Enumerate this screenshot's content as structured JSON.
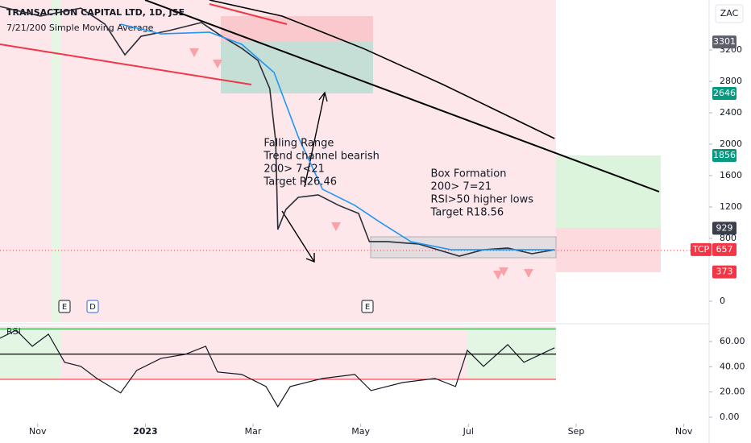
{
  "chart_data": {
    "type": "line",
    "title": "TRANSACTION CAPITAL LTD, 1D, JSE",
    "subtitle": "7/21/200 Simple Moving Average",
    "currency": "ZAC",
    "xlim": [
      0.3,
      13.47
    ],
    "xticks": [
      {
        "value": 1,
        "label": "Nov"
      },
      {
        "value": 3,
        "label": "2023"
      },
      {
        "value": 5,
        "label": "Mar"
      },
      {
        "value": 7,
        "label": "May"
      },
      {
        "value": 9,
        "label": "Jul"
      },
      {
        "value": 11,
        "label": "Sep"
      },
      {
        "value": 13,
        "label": "Nov"
      }
    ],
    "ylim": [
      -267,
      3836
    ],
    "yticks": [
      0,
      800,
      1200,
      1600,
      2000,
      2400,
      2800,
      3200
    ],
    "series": [
      {
        "color": "#2a2e39",
        "x": [
          0.3,
          1.05,
          1.8,
          2.25,
          2.62,
          2.92,
          3.44,
          4.04,
          4.42,
          4.79,
          5.09,
          5.31,
          5.42,
          5.46,
          5.61,
          5.84,
          6.21,
          6.59,
          6.96,
          7.16,
          7.49,
          8.08,
          8.83,
          9.28,
          9.73,
          10.18,
          10.6
        ],
        "values": [
          3754,
          3631,
          3733,
          3528,
          3138,
          3374,
          3446,
          3549,
          3374,
          3221,
          3067,
          2708,
          2041,
          913,
          1169,
          1323,
          1354,
          1221,
          1118,
          759,
          759,
          728,
          574,
          656,
          677,
          605,
          656
        ]
      },
      {
        "color": "#2196f3",
        "x": [
          2.54,
          3.29,
          4.19,
          4.79,
          5.39,
          5.84,
          6.29,
          6.89,
          7.34,
          7.93,
          8.68,
          10.6
        ],
        "values": [
          3528,
          3405,
          3426,
          3272,
          2913,
          2092,
          1426,
          1221,
          1015,
          759,
          656,
          656
        ]
      },
      {
        "color": "#000000",
        "x": [
          4.19,
          5.54,
          7.04,
          8.53,
          10.6
        ],
        "values": [
          3836,
          3631,
          3221,
          2759,
          2072
        ]
      }
    ],
    "price_labels": [
      {
        "value": 3301,
        "color": "#5d606b"
      },
      {
        "value": 2646,
        "color": "#089981"
      },
      {
        "value": 1856,
        "color": "#089981"
      },
      {
        "value": 929,
        "color": "#3a3e4a"
      },
      {
        "value": 657,
        "color": "#f23645",
        "symbol": "TCP"
      },
      {
        "value": 373,
        "color": "#f23645"
      }
    ],
    "annotations": [
      {
        "lines": [
          "Falling Range",
          "Trend channel bearish",
          "200> 7<21",
          "Target R26.46"
        ],
        "x": 5.2,
        "y": 2010
      },
      {
        "lines": [
          "Box Formation",
          "200> 7=21",
          "RSI>50 higher lows",
          "Target R18.56"
        ],
        "x": 8.3,
        "y": 1620
      }
    ],
    "events": [
      "E",
      "D",
      "E"
    ],
    "rsi": {
      "title": "RSI",
      "color": "#131722",
      "ylim": [
        -4.5,
        72.1
      ],
      "yticks": [
        {
          "value": 60,
          "label": "60.00"
        },
        {
          "value": 40,
          "label": "40.00"
        },
        {
          "value": 20,
          "label": "20.00"
        },
        {
          "value": 0,
          "label": "0.00"
        }
      ],
      "levels": [
        {
          "value": 70,
          "color": "#22ab3d"
        },
        {
          "value": 50,
          "color": "#000000"
        },
        {
          "value": 30,
          "color": "#f23645"
        }
      ],
      "x": [
        0.3,
        0.6,
        0.9,
        1.2,
        1.5,
        1.8,
        2.1,
        2.54,
        2.84,
        3.29,
        3.74,
        4.12,
        4.34,
        4.79,
        5.24,
        5.46,
        5.69,
        6.29,
        6.89,
        7.19,
        7.78,
        8.38,
        8.76,
        8.98,
        9.28,
        9.73,
        10.03,
        10.6
      ],
      "values": [
        62.6,
        69.0,
        56.2,
        65.8,
        43.5,
        40.3,
        30.7,
        19.2,
        37.1,
        46.6,
        49.8,
        56.2,
        35.8,
        33.9,
        24.3,
        8.3,
        24.3,
        30.7,
        33.9,
        21.1,
        27.5,
        30.7,
        24.3,
        53.0,
        40.3,
        57.5,
        43.5,
        55.0
      ]
    }
  }
}
